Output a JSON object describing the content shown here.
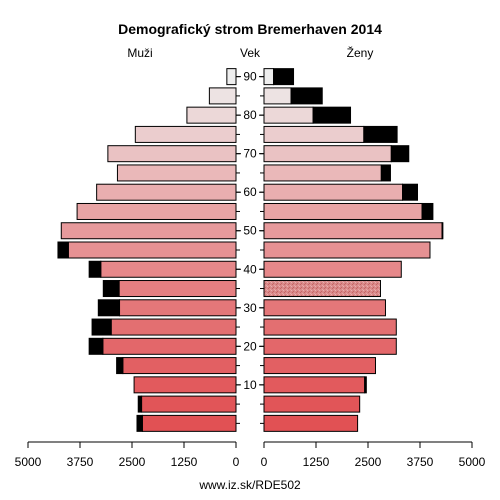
{
  "chart_data": {
    "type": "bar",
    "title": "Demografický strom Bremerhaven 2014",
    "left_label": "Muži",
    "center_label": "Vek",
    "right_label": "Ženy",
    "footer": "www.iz.sk/RDE502",
    "age_groups": [
      "0-4",
      "5-9",
      "10-14",
      "15-19",
      "20-24",
      "25-29",
      "30-34",
      "35-39",
      "40-44",
      "45-49",
      "50-54",
      "55-59",
      "60-64",
      "65-69",
      "70-74",
      "75-79",
      "80-84",
      "85-89",
      "90+"
    ],
    "age_tick_labels": [
      "10",
      "20",
      "30",
      "40",
      "50",
      "60",
      "70",
      "80",
      "90"
    ],
    "age_tick_groups": [
      2,
      4,
      6,
      8,
      10,
      12,
      14,
      16,
      18
    ],
    "x_tick_labels_left": [
      "5000",
      "3750",
      "2500",
      "1250",
      "0"
    ],
    "x_tick_labels_right": [
      "0",
      "1250",
      "2500",
      "3750",
      "5000"
    ],
    "x_tick_values": [
      5000,
      3750,
      2500,
      1250,
      0
    ],
    "xlim": [
      0,
      5000
    ],
    "series": [
      {
        "name": "Muži",
        "base": [
          2250,
          2270,
          2450,
          2720,
          3200,
          3000,
          2800,
          2810,
          3250,
          4030,
          4200,
          3820,
          3350,
          2850,
          3080,
          2420,
          1180,
          640,
          220
        ],
        "surplus": [
          130,
          80,
          0,
          150,
          330,
          460,
          510,
          380,
          280,
          250,
          0,
          0,
          0,
          0,
          0,
          0,
          0,
          0,
          0
        ]
      },
      {
        "name": "Ženy",
        "base": [
          2250,
          2300,
          2420,
          2680,
          3180,
          3180,
          2920,
          2800,
          3300,
          3990,
          4280,
          3800,
          3330,
          2820,
          3060,
          2400,
          1180,
          650,
          230
        ],
        "surplus": [
          0,
          0,
          40,
          0,
          0,
          0,
          0,
          0,
          0,
          0,
          20,
          260,
          360,
          220,
          420,
          800,
          900,
          750,
          480
        ]
      }
    ],
    "colors": {
      "surplus": "#000000",
      "border": "#000000",
      "male_young": "#e15154",
      "male_old": "#eeeeee",
      "female_young": "#e15154",
      "female_old": "#eeeeee",
      "female_highlight": "#c86d6d"
    },
    "highlight_group": "35-39"
  }
}
